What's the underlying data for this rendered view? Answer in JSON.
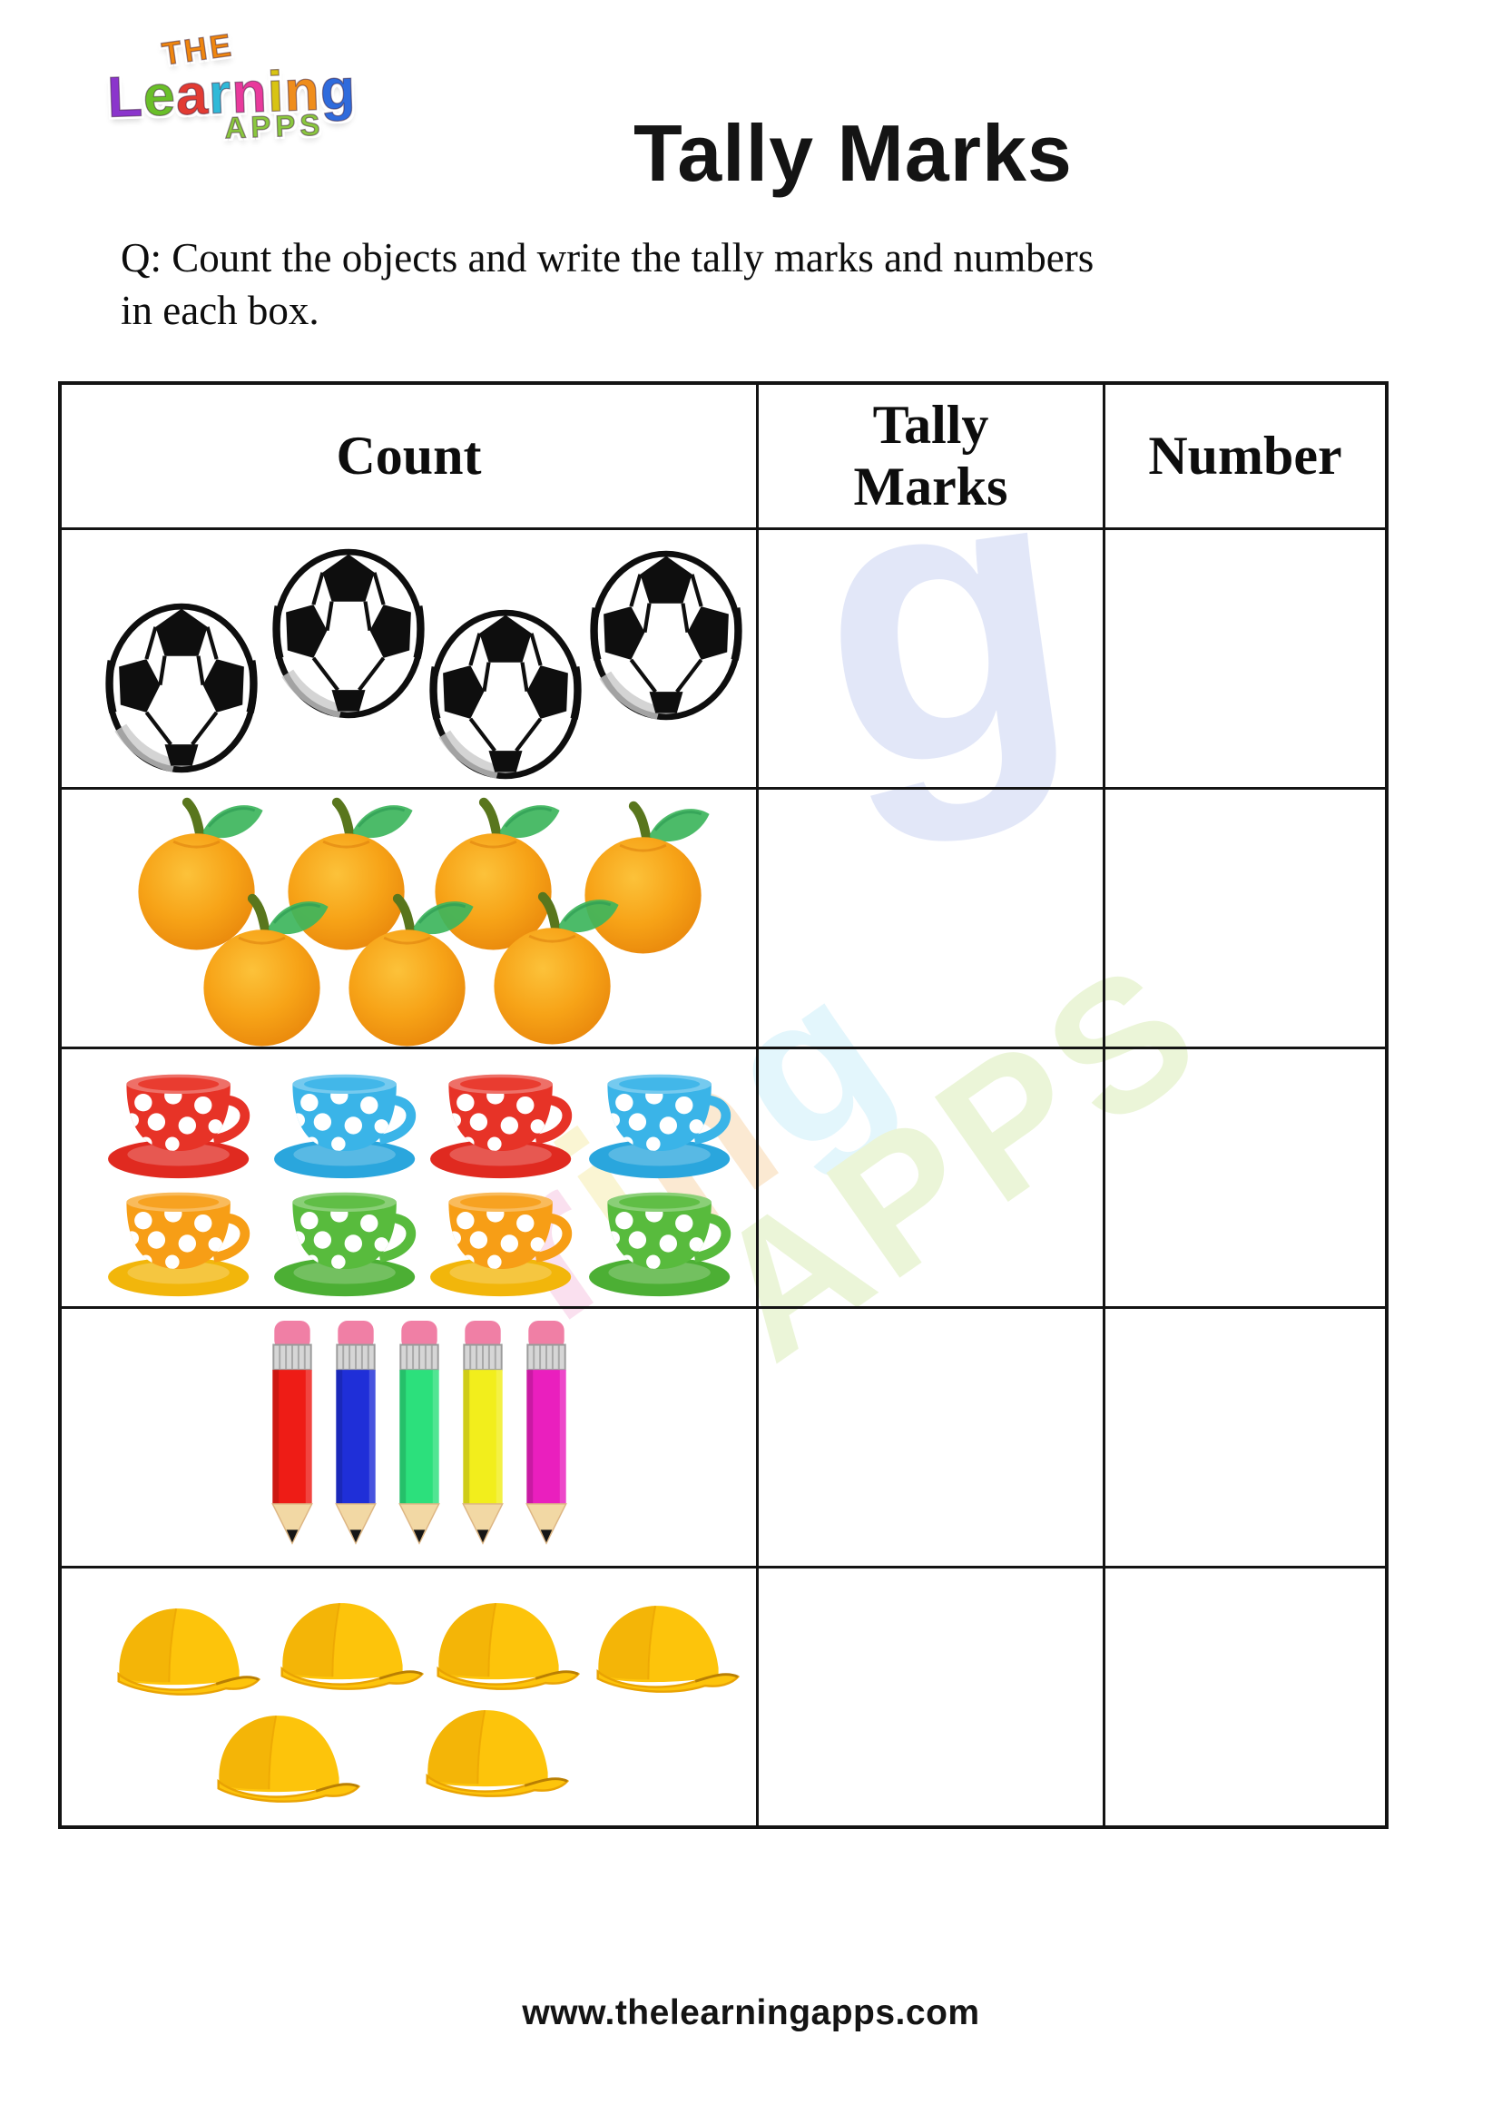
{
  "logo": {
    "the": "THE",
    "word": [
      {
        "ch": "L",
        "color": "#8b35cc"
      },
      {
        "ch": "e",
        "color": "#6abf29"
      },
      {
        "ch": "a",
        "color": "#e23b33"
      },
      {
        "ch": "r",
        "color": "#2fb9d8"
      },
      {
        "ch": "n",
        "color": "#e83a9c"
      },
      {
        "ch": "i",
        "color": "#d8c413"
      },
      {
        "ch": "n",
        "color": "#ef8d1c"
      },
      {
        "ch": "g",
        "color": "#2f6bdc"
      }
    ],
    "apps": "APPS"
  },
  "header": {
    "title": "Tally Marks"
  },
  "question": "Q: Count the objects and write the tally marks and numbers in each box.",
  "table": {
    "headers": [
      "Count",
      "Tally Marks",
      "Number"
    ],
    "rows": [
      {
        "object": "soccer-ball",
        "count": 4,
        "tally": "",
        "number": ""
      },
      {
        "object": "orange",
        "count": 7,
        "tally": "",
        "number": ""
      },
      {
        "object": "cup",
        "count": 8,
        "colors": [
          "red",
          "blue",
          "red",
          "blue",
          "orange",
          "green",
          "orange",
          "green"
        ],
        "tally": "",
        "number": ""
      },
      {
        "object": "pencil",
        "count": 5,
        "colors": [
          "red",
          "blue",
          "green",
          "yellow",
          "magenta"
        ],
        "tally": "",
        "number": ""
      },
      {
        "object": "cap",
        "count": 6,
        "colors": [
          "yellow",
          "yellow",
          "yellow",
          "yellow",
          "yellow",
          "yellow"
        ],
        "tally": "",
        "number": ""
      }
    ]
  },
  "palette": {
    "cup": {
      "red": {
        "body": "#e73327",
        "saucer": "#e02a20"
      },
      "blue": {
        "body": "#3ab4e8",
        "saucer": "#2aa6dd"
      },
      "orange": {
        "body": "#f79e16",
        "saucer": "#f2b60b"
      },
      "green": {
        "body": "#58bb3d",
        "saucer": "#4caf34"
      }
    },
    "pencil": {
      "red": "#ee1c16",
      "blue": "#1f2fd8",
      "green": "#2ce07c",
      "yellow": "#f2ee1c",
      "magenta": "#ea1fbe",
      "eraser": "#f07fa5",
      "ferrule": "#d6d6d6",
      "wood": "#f2d8a4",
      "lead": "#161616"
    },
    "cap": {
      "yellow": {
        "main": "#fdc40b",
        "shade": "#e9a303"
      }
    },
    "orange_fruit": {
      "body1": "#f7a317",
      "body2": "#e8860b",
      "leaf": "#3db55c",
      "stem": "#59761d"
    },
    "soccer": {
      "line": "#0e0e0e",
      "shade": "#c9c9c9"
    }
  },
  "watermark": {
    "g": "g",
    "g_color": "#c6d0f2",
    "letters": [
      {
        "ch": "r",
        "color": "#f6c7e2"
      },
      {
        "ch": "i",
        "color": "#f6eeb0"
      },
      {
        "ch": "n",
        "color": "#f8d8ae"
      },
      {
        "ch": "g",
        "color": "#cdeffa"
      }
    ],
    "apps": "APPS",
    "apps_color": "#dcedba"
  },
  "footer": "www.thelearningapps.com"
}
